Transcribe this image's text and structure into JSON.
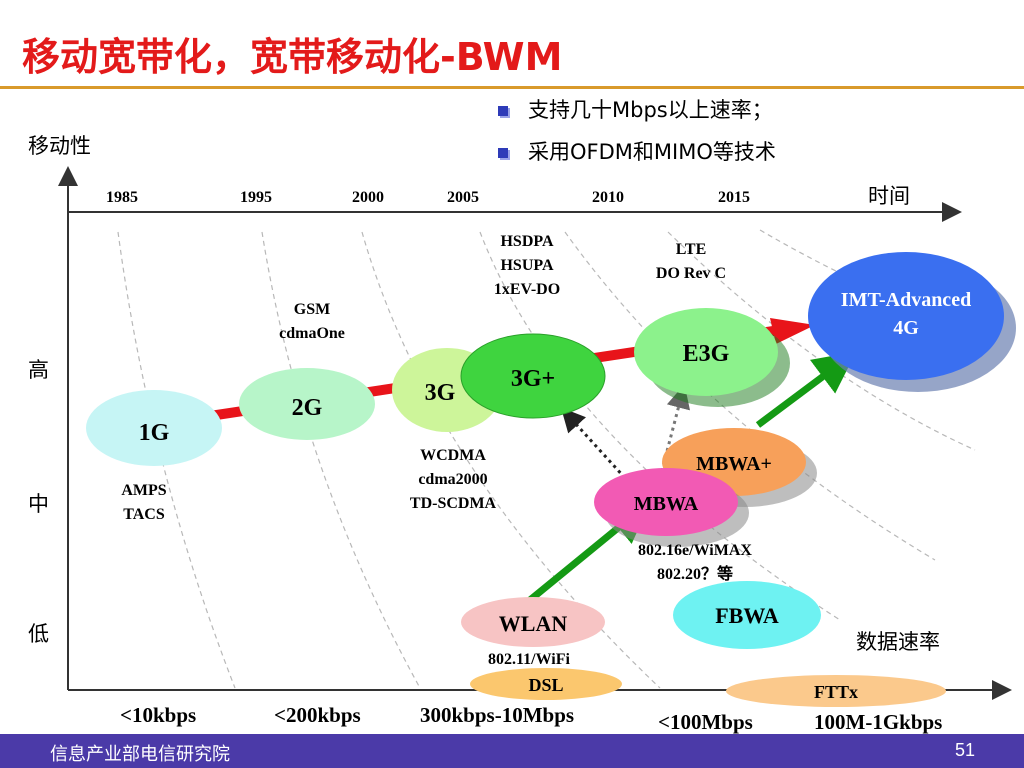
{
  "title": "移动宽带化，宽带移动化-BWM",
  "bullets": [
    "支持几十Mbps以上速率；",
    "采用OFDM和MIMO等技术"
  ],
  "axes": {
    "y_label": "移动性",
    "x_label_time": "时间",
    "x_label_rate": "数据速率",
    "mobility_levels": [
      "高",
      "中",
      "低"
    ]
  },
  "years": [
    "1985",
    "1995",
    "2000",
    "2005",
    "2010",
    "2015"
  ],
  "nodes": {
    "g1": "1G",
    "g2": "2G",
    "g3": "3G",
    "g3plus": "3G+",
    "e3g": "E3G",
    "imt_line1": "IMT-Advanced",
    "imt_line2": "4G",
    "mbwa_plus": "MBWA+",
    "mbwa": "MBWA",
    "fbwa": "FBWA",
    "wlan": "WLAN",
    "dsl": "DSL",
    "fttx": "FTTx"
  },
  "tech_labels": {
    "amps": "AMPS",
    "tacs": "TACS",
    "gsm": "GSM",
    "cdmaone": "cdmaOne",
    "wcdma": "WCDMA",
    "cdma2000": "cdma2000",
    "tdscdma": "TD-SCDMA",
    "hsdpa": "HSDPA",
    "hsupa": "HSUPA",
    "evdo": "1xEV-DO",
    "lte": "LTE",
    "dorevc": "DO Rev C",
    "wimax": "802.16e/WiMAX",
    "ieee80220": "802.20？等",
    "wifi": "802.11/WiFi"
  },
  "rates": [
    "<10kbps",
    "<200kbps",
    "300kbps-10Mbps",
    "<100Mbps",
    "100M-1Gkbps"
  ],
  "footer": {
    "org": "信息产业部电信研究院",
    "page": "51"
  },
  "colors": {
    "title": "#e31a1a",
    "footer": "#4b3aa8",
    "red_arrow": "#e8141a",
    "green_arrow": "#149a14",
    "g1": "#c6f5f5",
    "g2": "#b7f5c9",
    "g3": "#cdf59a",
    "g3plus": "#3fd43f",
    "e3g": "#8cf28c",
    "imt": "#3a6ff0",
    "mbwa_plus": "#f7a05a",
    "mbwa": "#f25ab4",
    "fbwa": "#6ef2f2",
    "wlan": "#f7c4c4",
    "dsl": "#fbc76e",
    "fttx": "#fbc98c"
  }
}
